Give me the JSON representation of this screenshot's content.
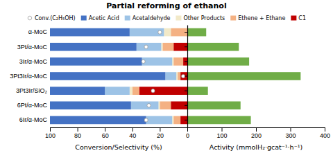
{
  "chart_data": [
    {
      "type": "bar",
      "orientation": "horizontal",
      "stacked": true,
      "title": "Partial reforming of ethanol",
      "xlabel": "Conversion/Selectivity (%)",
      "categories": [
        "6Ir/α-MoC",
        "6Pt/α-MoC",
        "3Pt3Ir/SiO₂",
        "3Pt3Ir/α-MoC",
        "3Ir/α-MoC",
        "3Pt/α-MoC",
        "α-MoC"
      ],
      "series": [
        {
          "name": "C1",
          "color": "#C00000",
          "values": [
            5,
            12,
            35,
            5,
            3,
            10,
            0
          ]
        },
        {
          "name": "Ethene + Ethane",
          "color": "#F4B183",
          "values": [
            5,
            8,
            5,
            2,
            7,
            8,
            12
          ]
        },
        {
          "name": "Other Products",
          "color": "#F2E9C8",
          "values": [
            1,
            1,
            2,
            1,
            1,
            1,
            5
          ]
        },
        {
          "name": "Acetaldehyde",
          "color": "#9DC3E6",
          "values": [
            19,
            20,
            18,
            8,
            22,
            18,
            25
          ]
        },
        {
          "name": "Acetic Acid",
          "color": "#4472C4",
          "values": [
            70,
            59,
            40,
            84,
            67,
            63,
            58
          ]
        },
        {
          "name": "Conv.(C₂H₅OH)",
          "type": "scatter",
          "marker": "circle",
          "color": "#FFFFFF",
          "values": [
            30,
            28,
            25,
            3,
            32,
            30,
            20
          ]
        }
      ],
      "xlim": [
        100,
        0
      ],
      "xticks": [
        100,
        80,
        60,
        40,
        20
      ],
      "grid": false,
      "legend": "top"
    },
    {
      "type": "bar",
      "orientation": "horizontal",
      "xlabel": "Activity (mmolH₂·gcat⁻¹·h⁻¹)",
      "categories": [
        "6Ir/α-MoC",
        "6Pt/α-MoC",
        "3Pt3Ir/SiO₂",
        "3Pt3Ir/α-MoC",
        "3Ir/α-MoC",
        "3Pt/α-MoC",
        "α-MoC"
      ],
      "values": [
        185,
        155,
        60,
        330,
        180,
        150,
        55
      ],
      "color": "#70AD47",
      "xlim": [
        0,
        400
      ],
      "xticks": [
        0,
        100,
        200,
        300,
        400
      ],
      "tick_labels": "x",
      "grid": false
    }
  ]
}
